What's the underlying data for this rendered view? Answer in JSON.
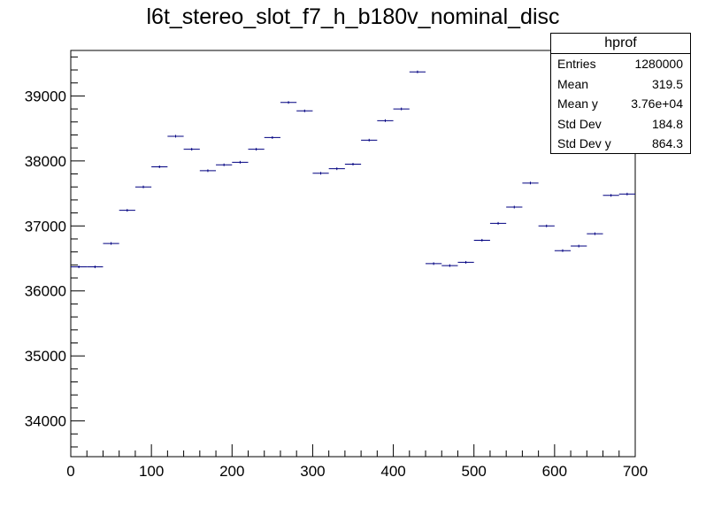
{
  "chart_data": {
    "type": "scatter",
    "title": "l6t_stereo_slot_f7_h_b180v_nominal_disc",
    "xlabel": "",
    "ylabel": "",
    "xlim": [
      0,
      700
    ],
    "ylim": [
      33450,
      39700
    ],
    "bin_width": 20,
    "x_ticks": [
      "0",
      "100",
      "200",
      "300",
      "400",
      "500",
      "600",
      "700"
    ],
    "y_ticks": [
      "34000",
      "35000",
      "36000",
      "37000",
      "38000",
      "39000"
    ],
    "grid": false,
    "legend": "top-right stats box",
    "marker_color": "#000080",
    "points": [
      {
        "x": 10,
        "y": 36370
      },
      {
        "x": 30,
        "y": 36370
      },
      {
        "x": 50,
        "y": 36730
      },
      {
        "x": 70,
        "y": 37240
      },
      {
        "x": 90,
        "y": 37600
      },
      {
        "x": 110,
        "y": 37910
      },
      {
        "x": 130,
        "y": 38380
      },
      {
        "x": 150,
        "y": 38180
      },
      {
        "x": 170,
        "y": 37850
      },
      {
        "x": 190,
        "y": 37940
      },
      {
        "x": 210,
        "y": 37980
      },
      {
        "x": 230,
        "y": 38180
      },
      {
        "x": 250,
        "y": 38360
      },
      {
        "x": 270,
        "y": 38900
      },
      {
        "x": 290,
        "y": 38770
      },
      {
        "x": 310,
        "y": 37810
      },
      {
        "x": 330,
        "y": 37880
      },
      {
        "x": 350,
        "y": 37950
      },
      {
        "x": 370,
        "y": 38320
      },
      {
        "x": 390,
        "y": 38620
      },
      {
        "x": 410,
        "y": 38800
      },
      {
        "x": 430,
        "y": 39370
      },
      {
        "x": 450,
        "y": 36420
      },
      {
        "x": 470,
        "y": 36390
      },
      {
        "x": 490,
        "y": 36440
      },
      {
        "x": 510,
        "y": 36780
      },
      {
        "x": 530,
        "y": 37040
      },
      {
        "x": 550,
        "y": 37290
      },
      {
        "x": 570,
        "y": 37660
      },
      {
        "x": 590,
        "y": 37000
      },
      {
        "x": 610,
        "y": 36620
      },
      {
        "x": 630,
        "y": 36690
      },
      {
        "x": 650,
        "y": 36880
      },
      {
        "x": 670,
        "y": 37470
      },
      {
        "x": 690,
        "y": 37490
      }
    ]
  },
  "stats": {
    "title": "hprof",
    "rows": [
      {
        "label": "Entries",
        "value": "1280000"
      },
      {
        "label": "Mean",
        "value": "319.5"
      },
      {
        "label": "Mean y",
        "value": "3.76e+04"
      },
      {
        "label": "Std Dev",
        "value": "184.8"
      },
      {
        "label": "Std Dev y",
        "value": "864.3"
      }
    ]
  }
}
